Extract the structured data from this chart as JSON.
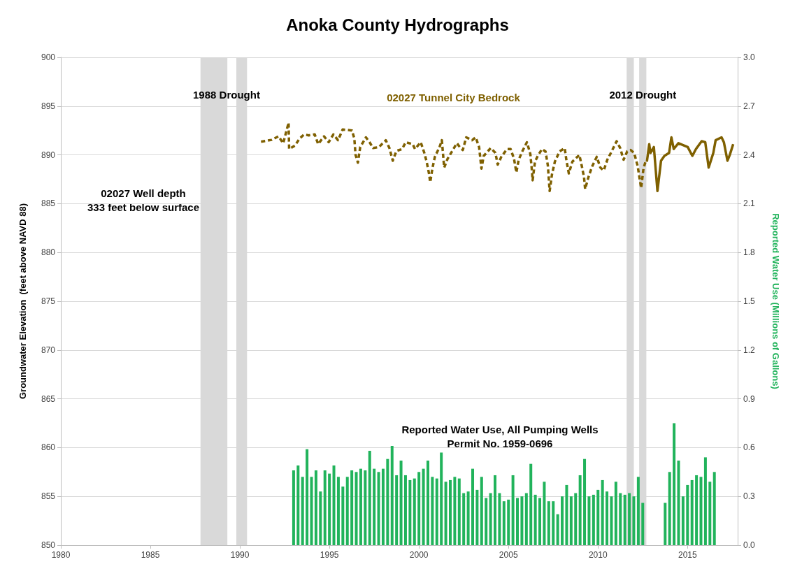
{
  "chart_data": {
    "type": "line",
    "title": "Anoka County Hydrographs",
    "xlabel": null,
    "ylabel": "Groundwater Elevation  (feet above NAVD 88)",
    "y2label": "Reported Water Use (Millions of Gallons)",
    "xlim": [
      1980,
      2017.8
    ],
    "xticks": [
      1980,
      1985,
      1990,
      1995,
      2000,
      2005,
      2010,
      2015
    ],
    "ylim": [
      850,
      900
    ],
    "yticks": [
      850,
      855,
      860,
      865,
      870,
      875,
      880,
      885,
      890,
      895,
      900
    ],
    "y2lim": [
      0,
      3
    ],
    "y2ticks": [
      {
        "value": 0,
        "label": "0.0"
      },
      0.3,
      0.6,
      0.9,
      1.2,
      1.5,
      1.8,
      2.1,
      2.4,
      2.7,
      {
        "value": 3,
        "label": "3.0"
      }
    ],
    "grid": "y",
    "legend": false,
    "marker": "none",
    "bands": [
      {
        "axis": "x",
        "from": 1987.8,
        "to": 1989.3,
        "label": "1988 Drought",
        "color": "#d9d9d9"
      },
      {
        "axis": "x",
        "from": 1989.8,
        "to": 1990.4,
        "color": "#d9d9d9"
      },
      {
        "axis": "x",
        "from": 2011.6,
        "to": 2012.0,
        "label": "2012 Drought",
        "color": "#d9d9d9"
      },
      {
        "axis": "x",
        "from": 2012.3,
        "to": 2012.7,
        "color": "#d9d9d9"
      }
    ],
    "annotations": [
      "02027 Well depth\n333 feet below surface",
      "Reported Water Use, All Pumping Wells\nPermit No. 1959-0696"
    ],
    "series": [
      {
        "name": "02027 Tunnel City Bedrock",
        "line_style": "dashed",
        "color": "#7f6000",
        "x": [
          1991.18,
          1991.44,
          1991.77,
          1992.16,
          1992.42,
          1992.72,
          1992.75,
          1993.07,
          1993.33,
          1993.59,
          1993.85,
          1994.18,
          1994.37,
          1994.7,
          1994.96,
          1995.22,
          1995.48,
          1995.74,
          1996.26,
          1996.39,
          1996.46,
          1996.59,
          1996.72,
          1997.04,
          1997.24,
          1997.44,
          1997.76,
          1998.15,
          1998.35,
          1998.54,
          1998.74,
          1999.06,
          1999.26,
          1999.65,
          1999.78,
          2000.1,
          2000.3,
          2000.43,
          2000.56,
          2000.63,
          2000.76,
          2000.89,
          2001.15,
          2001.28,
          2001.34,
          2001.41,
          2001.6,
          2001.86,
          2002.12,
          2002.32,
          2002.45,
          2002.64,
          2002.97,
          2003.17,
          2003.36,
          2003.49,
          2003.62,
          2004.01,
          2004.27,
          2004.4,
          2004.6,
          2004.92,
          2005.12,
          2005.31,
          2005.44,
          2005.57,
          2005.77,
          2006.03,
          2006.22,
          2006.29,
          2006.35,
          2006.48,
          2006.61,
          2006.87,
          2007.07,
          2007.2,
          2007.3,
          2007.43,
          2007.59,
          2007.85,
          2008.14,
          2008.24,
          2008.37,
          2008.57,
          2008.96,
          2009.09,
          2009.22,
          2009.28,
          2009.48,
          2009.67,
          2009.93,
          2010.13,
          2010.32,
          2010.52,
          2010.72,
          2011.04,
          2011.24,
          2011.43,
          2011.63,
          2011.82,
          2012.02,
          2012.21,
          2012.41,
          2012.54,
          2012.67
        ],
        "values": [
          891.35,
          891.43,
          891.54,
          891.9,
          891.19,
          893.3,
          890.6,
          890.95,
          891.66,
          892.1,
          892.0,
          892.1,
          891.1,
          891.9,
          891.3,
          892.1,
          891.5,
          892.6,
          892.5,
          891.7,
          890.0,
          889.2,
          890.8,
          891.8,
          891.3,
          890.7,
          890.8,
          891.5,
          890.7,
          889.4,
          890.4,
          890.6,
          891.3,
          891.1,
          890.6,
          891.3,
          890.2,
          889.3,
          888.1,
          887.2,
          888.7,
          889.8,
          890.8,
          891.5,
          890.2,
          888.7,
          889.6,
          890.4,
          891.2,
          890.7,
          890.5,
          891.8,
          891.5,
          891.8,
          890.8,
          888.6,
          889.9,
          890.7,
          890.2,
          889.0,
          889.8,
          890.6,
          890.6,
          889.6,
          888.2,
          889.5,
          890.35,
          891.3,
          890.1,
          888.8,
          887.4,
          889.3,
          889.8,
          890.6,
          890.35,
          888.9,
          886.3,
          888.0,
          889.3,
          890.35,
          890.7,
          889.4,
          888.1,
          889.3,
          890.0,
          888.9,
          887.7,
          886.5,
          887.8,
          888.8,
          889.8,
          888.7,
          888.4,
          889.5,
          890.2,
          891.4,
          890.7,
          889.5,
          890.35,
          890.5,
          890.2,
          888.9,
          886.6,
          888.6,
          889.4
        ]
      },
      {
        "line_style": "solid",
        "color": "#7f6000",
        "x": [
          2012.73,
          2012.86,
          2012.93,
          2013.12,
          2013.32,
          2013.52,
          2013.71,
          2013.97,
          2014.1,
          2014.23,
          2014.49,
          2015.01,
          2015.27,
          2015.47,
          2015.79,
          2015.99,
          2016.18,
          2016.44,
          2016.57,
          2016.9,
          2017.03,
          2017.23,
          2017.36,
          2017.55
        ],
        "values": [
          889.3,
          891.1,
          890.2,
          890.8,
          886.3,
          889.4,
          889.9,
          890.2,
          891.8,
          890.6,
          891.2,
          890.8,
          889.9,
          890.6,
          891.4,
          891.3,
          888.7,
          890.2,
          891.5,
          891.8,
          891.3,
          889.4,
          890.0,
          891.1
        ]
      },
      {
        "type": "bar",
        "axis": "y2",
        "color": "#21b35b",
        "x": [
          1993.0,
          1993.25,
          1993.5,
          1993.75,
          1994.0,
          1994.25,
          1994.5,
          1994.75,
          1995.0,
          1995.25,
          1995.5,
          1995.75,
          1996.0,
          1996.25,
          1996.5,
          1996.75,
          1997.0,
          1997.25,
          1997.5,
          1997.75,
          1998.0,
          1998.25,
          1998.5,
          1998.75,
          1999.0,
          1999.25,
          1999.5,
          1999.75,
          2000.0,
          2000.25,
          2000.5,
          2000.75,
          2001.0,
          2001.25,
          2001.5,
          2001.75,
          2002.0,
          2002.25,
          2002.5,
          2002.75,
          2003.0,
          2003.25,
          2003.5,
          2003.75,
          2004.0,
          2004.25,
          2004.5,
          2004.75,
          2005.0,
          2005.25,
          2005.5,
          2005.75,
          2006.0,
          2006.25,
          2006.5,
          2006.75,
          2007.0,
          2007.25,
          2007.5,
          2007.75,
          2008.0,
          2008.25,
          2008.5,
          2008.75,
          2009.0,
          2009.25,
          2009.5,
          2009.75,
          2010.0,
          2010.25,
          2010.5,
          2010.75,
          2011.0,
          2011.25,
          2011.5,
          2011.75,
          2012.0,
          2012.25,
          2012.5,
          2013.75,
          2014.0,
          2014.25,
          2014.5,
          2014.75,
          2015.0,
          2015.25,
          2015.5,
          2015.75,
          2016.0,
          2016.25,
          2016.5
        ],
        "values": [
          0.46,
          0.49,
          0.42,
          0.59,
          0.42,
          0.46,
          0.33,
          0.46,
          0.44,
          0.49,
          0.42,
          0.36,
          0.42,
          0.46,
          0.45,
          0.47,
          0.46,
          0.58,
          0.47,
          0.45,
          0.47,
          0.53,
          0.61,
          0.43,
          0.52,
          0.43,
          0.4,
          0.41,
          0.45,
          0.47,
          0.52,
          0.42,
          0.41,
          0.57,
          0.39,
          0.4,
          0.42,
          0.41,
          0.32,
          0.33,
          0.47,
          0.34,
          0.42,
          0.29,
          0.32,
          0.43,
          0.32,
          0.27,
          0.28,
          0.43,
          0.29,
          0.3,
          0.32,
          0.5,
          0.31,
          0.29,
          0.39,
          0.27,
          0.27,
          0.19,
          0.3,
          0.37,
          0.3,
          0.32,
          0.43,
          0.53,
          0.3,
          0.31,
          0.34,
          0.4,
          0.33,
          0.3,
          0.39,
          0.32,
          0.31,
          0.32,
          0.3,
          0.42,
          0.26,
          0.26,
          0.45,
          0.75,
          0.52,
          0.3,
          0.37,
          0.4,
          0.43,
          0.42,
          0.54,
          0.39,
          0.45
        ]
      }
    ]
  }
}
